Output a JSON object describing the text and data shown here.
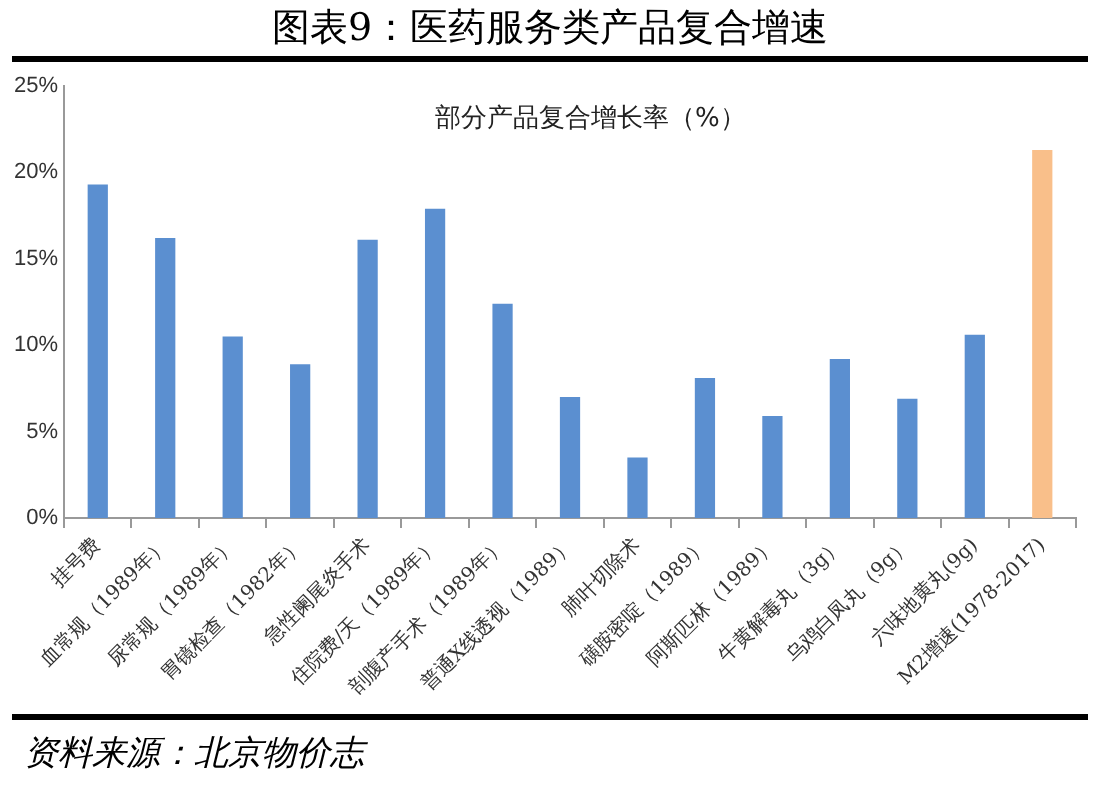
{
  "chart_data": {
    "type": "bar",
    "title": "图表9：医药服务类产品复合增速",
    "subtitle": "部分产品复合增长率（%）",
    "categories": [
      "挂号费",
      "血常规（1989年）",
      "尿常规（1989年）",
      "胃镜检查（1982年）",
      "急性阑尾炎手术",
      "住院费/天（1989年）",
      "剖腹产手术（1989年）",
      "普通X线透视（1989）",
      "肺叶切除术",
      "磺胺密啶（1989）",
      "阿斯匹林（1989）",
      "牛黄解毒丸（3g）",
      "乌鸡白凤丸（9g）",
      "六味地黄丸(9g)",
      "M2增速(1978-2017)"
    ],
    "values": [
      19.3,
      16.2,
      10.5,
      8.9,
      16.1,
      17.9,
      12.4,
      7.0,
      3.5,
      8.1,
      5.9,
      9.2,
      6.9,
      10.6,
      21.3
    ],
    "colors": [
      "#5b8fd0",
      "#5b8fd0",
      "#5b8fd0",
      "#5b8fd0",
      "#5b8fd0",
      "#5b8fd0",
      "#5b8fd0",
      "#5b8fd0",
      "#5b8fd0",
      "#5b8fd0",
      "#5b8fd0",
      "#5b8fd0",
      "#5b8fd0",
      "#5b8fd0",
      "#f9bf8a"
    ],
    "ylim": [
      0,
      25
    ],
    "yticks": [
      {
        "value": 0,
        "label": "0%"
      },
      {
        "value": 5,
        "label": "5%"
      },
      {
        "value": 10,
        "label": "10%"
      },
      {
        "value": 15,
        "label": "15%"
      },
      {
        "value": 20,
        "label": "20%"
      },
      {
        "value": 25,
        "label": "25%"
      }
    ],
    "grid": false,
    "legend": false,
    "annotations": [
      "资料来源：北京物价志"
    ]
  }
}
